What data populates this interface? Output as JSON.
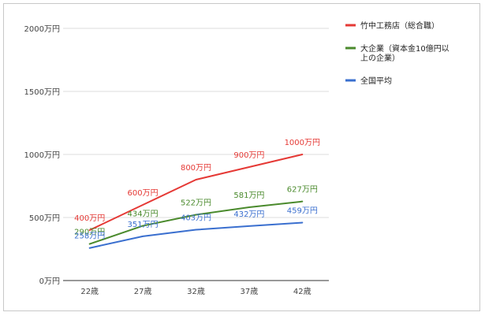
{
  "chart_data": {
    "type": "line",
    "categories": [
      "22歳",
      "27歳",
      "32歳",
      "37歳",
      "42歳"
    ],
    "y_ticks": [
      "0万円",
      "500万円",
      "1000万円",
      "1500万円",
      "2000万円"
    ],
    "y_tick_values": [
      0,
      500,
      1000,
      1500,
      2000
    ],
    "ylim": [
      0,
      2000
    ],
    "grid": true,
    "legend_position": "right",
    "series": [
      {
        "name": "竹中工務店（総合職）",
        "legend_lines": [
          "竹中工務店（総合職）"
        ],
        "color": "#e53935",
        "values": [
          400,
          600,
          800,
          900,
          1000
        ],
        "labels": [
          "400万円",
          "600万円",
          "800万円",
          "900万円",
          "1000万円"
        ]
      },
      {
        "name": "大企業（資本金10億円以上の企業）",
        "legend_lines": [
          "大企業（資本金10億円以",
          "上の企業）"
        ],
        "color": "#4a8a2c",
        "values": [
          290,
          434,
          522,
          581,
          627
        ],
        "labels": [
          "290万円",
          "434万円",
          "522万円",
          "581万円",
          "627万円"
        ]
      },
      {
        "name": "全国平均",
        "legend_lines": [
          "全国平均"
        ],
        "color": "#3a6fcf",
        "values": [
          258,
          351,
          403,
          432,
          459
        ],
        "labels": [
          "258万円",
          "351万円",
          "403万円",
          "432万円",
          "459万円"
        ]
      }
    ]
  }
}
